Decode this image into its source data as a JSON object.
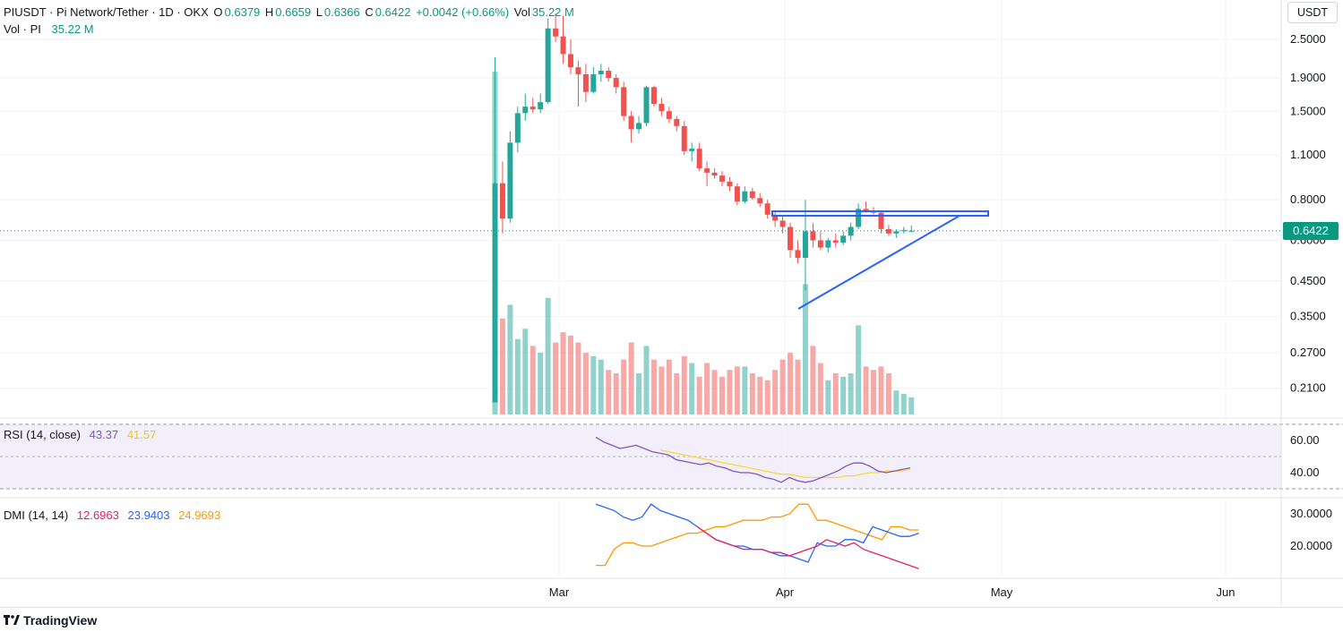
{
  "header": {
    "symbol_title": "PIUSDT · Pi Network/Tether · 1D · OKX",
    "o_label": "O",
    "o_value": "0.6379",
    "h_label": "H",
    "h_value": "0.6659",
    "l_label": "L",
    "l_value": "0.6366",
    "c_label": "C",
    "c_value": "0.6422",
    "change": "+0.0042 (+0.66%)",
    "vol_label": "Vol",
    "vol_value": "35.22 M",
    "vol_line_label": "Vol · PI",
    "vol_line_value": "35.22 M"
  },
  "currency": "USDT",
  "last_price": "0.6422",
  "rsi": {
    "label": "RSI (14, close)",
    "value": "43.37",
    "ma_value": "41.57"
  },
  "dmi": {
    "label": "DMI (14, 14)",
    "plus_di": "12.6963",
    "minus_di": "23.9403",
    "adx": "24.9693"
  },
  "footer": {
    "brand": "TradingView"
  },
  "colors": {
    "up": "#26a69a",
    "down": "#ef5350",
    "rsi": "#7e57c2",
    "rsi_ma": "#fdd835",
    "adx": "#ff9800",
    "plus_di": "#e91e63",
    "minus_di": "#2962ff",
    "trendline": "#2962ff"
  },
  "chart_data": [
    {
      "type": "candlestick",
      "title": "PIUSDT · Pi Network/Tether · 1D · OKX",
      "yscale": "log",
      "y_ticks": [
        "2.5000",
        "1.9000",
        "1.5000",
        "1.1000",
        "0.8000",
        "0.6000",
        "0.4500",
        "0.3500",
        "0.2700",
        "0.2100"
      ],
      "x_ticks": [
        "Mar",
        "Apr",
        "May",
        "Jun"
      ],
      "candles": [
        {
          "o": 0.19,
          "h": 2.2,
          "l": 0.19,
          "c": 0.9
        },
        {
          "o": 0.9,
          "h": 1.05,
          "l": 0.63,
          "c": 0.7
        },
        {
          "o": 0.7,
          "h": 1.3,
          "l": 0.68,
          "c": 1.2
        },
        {
          "o": 1.2,
          "h": 1.55,
          "l": 1.12,
          "c": 1.48
        },
        {
          "o": 1.48,
          "h": 1.7,
          "l": 1.4,
          "c": 1.55
        },
        {
          "o": 1.55,
          "h": 1.65,
          "l": 1.48,
          "c": 1.52
        },
        {
          "o": 1.52,
          "h": 1.7,
          "l": 1.48,
          "c": 1.6
        },
        {
          "o": 1.6,
          "h": 2.9,
          "l": 1.58,
          "c": 2.7
        },
        {
          "o": 2.7,
          "h": 3.0,
          "l": 2.45,
          "c": 2.55
        },
        {
          "o": 2.55,
          "h": 2.95,
          "l": 2.1,
          "c": 2.25
        },
        {
          "o": 2.25,
          "h": 2.5,
          "l": 1.95,
          "c": 2.05
        },
        {
          "o": 2.05,
          "h": 2.15,
          "l": 1.55,
          "c": 1.95
        },
        {
          "o": 1.95,
          "h": 2.1,
          "l": 1.6,
          "c": 1.72
        },
        {
          "o": 1.72,
          "h": 2.05,
          "l": 1.7,
          "c": 1.95
        },
        {
          "o": 1.95,
          "h": 2.1,
          "l": 1.85,
          "c": 2.0
        },
        {
          "o": 2.0,
          "h": 2.05,
          "l": 1.85,
          "c": 1.9
        },
        {
          "o": 1.9,
          "h": 1.95,
          "l": 1.7,
          "c": 1.78
        },
        {
          "o": 1.78,
          "h": 1.85,
          "l": 1.4,
          "c": 1.45
        },
        {
          "o": 1.45,
          "h": 1.5,
          "l": 1.2,
          "c": 1.32
        },
        {
          "o": 1.32,
          "h": 1.45,
          "l": 1.28,
          "c": 1.38
        },
        {
          "o": 1.38,
          "h": 1.8,
          "l": 1.35,
          "c": 1.78
        },
        {
          "o": 1.78,
          "h": 1.8,
          "l": 1.55,
          "c": 1.58
        },
        {
          "o": 1.58,
          "h": 1.65,
          "l": 1.45,
          "c": 1.5
        },
        {
          "o": 1.5,
          "h": 1.55,
          "l": 1.38,
          "c": 1.42
        },
        {
          "o": 1.42,
          "h": 1.45,
          "l": 1.3,
          "c": 1.35
        },
        {
          "o": 1.35,
          "h": 1.4,
          "l": 1.1,
          "c": 1.13
        },
        {
          "o": 1.13,
          "h": 1.2,
          "l": 1.05,
          "c": 1.15
        },
        {
          "o": 1.15,
          "h": 1.2,
          "l": 0.98,
          "c": 1.0
        },
        {
          "o": 1.0,
          "h": 1.05,
          "l": 0.88,
          "c": 0.97
        },
        {
          "o": 0.97,
          "h": 1.0,
          "l": 0.93,
          "c": 0.95
        },
        {
          "o": 0.95,
          "h": 0.98,
          "l": 0.88,
          "c": 0.91
        },
        {
          "o": 0.91,
          "h": 0.94,
          "l": 0.85,
          "c": 0.88
        },
        {
          "o": 0.88,
          "h": 0.9,
          "l": 0.77,
          "c": 0.79
        },
        {
          "o": 0.79,
          "h": 0.88,
          "l": 0.78,
          "c": 0.85
        },
        {
          "o": 0.85,
          "h": 0.87,
          "l": 0.8,
          "c": 0.81
        },
        {
          "o": 0.81,
          "h": 0.84,
          "l": 0.76,
          "c": 0.78
        },
        {
          "o": 0.78,
          "h": 0.8,
          "l": 0.7,
          "c": 0.72
        },
        {
          "o": 0.72,
          "h": 0.74,
          "l": 0.66,
          "c": 0.69
        },
        {
          "o": 0.69,
          "h": 0.72,
          "l": 0.63,
          "c": 0.66
        },
        {
          "o": 0.66,
          "h": 0.68,
          "l": 0.53,
          "c": 0.56
        },
        {
          "o": 0.56,
          "h": 0.6,
          "l": 0.51,
          "c": 0.53
        },
        {
          "o": 0.53,
          "h": 0.8,
          "l": 0.42,
          "c": 0.64
        },
        {
          "o": 0.64,
          "h": 0.68,
          "l": 0.57,
          "c": 0.6
        },
        {
          "o": 0.6,
          "h": 0.64,
          "l": 0.56,
          "c": 0.57
        },
        {
          "o": 0.57,
          "h": 0.61,
          "l": 0.55,
          "c": 0.6
        },
        {
          "o": 0.6,
          "h": 0.63,
          "l": 0.57,
          "c": 0.59
        },
        {
          "o": 0.59,
          "h": 0.64,
          "l": 0.58,
          "c": 0.62
        },
        {
          "o": 0.62,
          "h": 0.68,
          "l": 0.6,
          "c": 0.66
        },
        {
          "o": 0.66,
          "h": 0.78,
          "l": 0.65,
          "c": 0.75
        },
        {
          "o": 0.75,
          "h": 0.79,
          "l": 0.73,
          "c": 0.74
        },
        {
          "o": 0.74,
          "h": 0.76,
          "l": 0.72,
          "c": 0.73
        },
        {
          "o": 0.73,
          "h": 0.74,
          "l": 0.63,
          "c": 0.65
        },
        {
          "o": 0.65,
          "h": 0.67,
          "l": 0.62,
          "c": 0.63
        },
        {
          "o": 0.63,
          "h": 0.65,
          "l": 0.61,
          "c": 0.64
        },
        {
          "o": 0.64,
          "h": 0.66,
          "l": 0.63,
          "c": 0.645
        },
        {
          "o": 0.6379,
          "h": 0.6659,
          "l": 0.6366,
          "c": 0.6422
        }
      ],
      "volume": [
        1.0,
        0.28,
        0.32,
        0.22,
        0.25,
        0.2,
        0.18,
        0.34,
        0.21,
        0.24,
        0.23,
        0.21,
        0.18,
        0.17,
        0.16,
        0.13,
        0.12,
        0.16,
        0.21,
        0.12,
        0.2,
        0.16,
        0.14,
        0.16,
        0.12,
        0.17,
        0.15,
        0.11,
        0.15,
        0.13,
        0.11,
        0.13,
        0.14,
        0.14,
        0.12,
        0.11,
        0.1,
        0.13,
        0.16,
        0.18,
        0.16,
        0.38,
        0.2,
        0.15,
        0.1,
        0.12,
        0.11,
        0.12,
        0.26,
        0.14,
        0.13,
        0.14,
        0.12,
        0.07,
        0.06,
        0.05
      ]
    },
    {
      "type": "line",
      "title": "RSI (14, close)",
      "y_ticks": [
        "60.00",
        "40.00"
      ],
      "series": [
        {
          "name": "RSI",
          "values": [
            62,
            59,
            57,
            55,
            56,
            57,
            55,
            53,
            52,
            51,
            48,
            47,
            46,
            45,
            46,
            44,
            43,
            41,
            40,
            40,
            39,
            37,
            36,
            34,
            37,
            35,
            34,
            35,
            37,
            39,
            41,
            44,
            46,
            46,
            44,
            41,
            40,
            41,
            42,
            43
          ]
        },
        {
          "name": "MA",
          "values": [
            null,
            null,
            null,
            null,
            null,
            null,
            null,
            null,
            54,
            53,
            52,
            51,
            50,
            49,
            48,
            47,
            46,
            45,
            44,
            43,
            42,
            41,
            40,
            39,
            39,
            38,
            37,
            37,
            37,
            37,
            37,
            38,
            38,
            39,
            40,
            40,
            41,
            41,
            41,
            42
          ]
        }
      ]
    },
    {
      "type": "line",
      "title": "DMI (14, 14)",
      "y_ticks": [
        "30.0000",
        "20.0000"
      ],
      "series": [
        {
          "name": "+DI",
          "values": [
            null,
            null,
            null,
            null,
            null,
            null,
            null,
            null,
            null,
            null,
            null,
            26,
            24,
            22,
            21,
            20,
            19,
            19,
            19,
            18,
            18,
            17,
            18,
            19,
            20,
            22,
            21,
            20,
            21,
            19,
            18,
            17,
            16,
            15,
            14,
            13
          ]
        },
        {
          "name": "-DI",
          "values": [
            33,
            32,
            31,
            29,
            28,
            29,
            33,
            31,
            30,
            29,
            28,
            26,
            24,
            22,
            21,
            20,
            20,
            19,
            19,
            18,
            17,
            17,
            16,
            15,
            21,
            20,
            20,
            22,
            22,
            21,
            26,
            25,
            24,
            23,
            23,
            24
          ]
        },
        {
          "name": "ADX",
          "values": [
            14,
            14,
            19,
            21,
            21,
            20,
            20,
            21,
            22,
            23,
            24,
            24,
            25,
            26,
            26,
            27,
            28,
            28,
            28,
            29,
            29,
            30,
            33,
            33,
            28,
            28,
            27,
            26,
            25,
            24,
            23,
            22,
            26,
            26,
            25,
            25
          ]
        }
      ]
    }
  ]
}
